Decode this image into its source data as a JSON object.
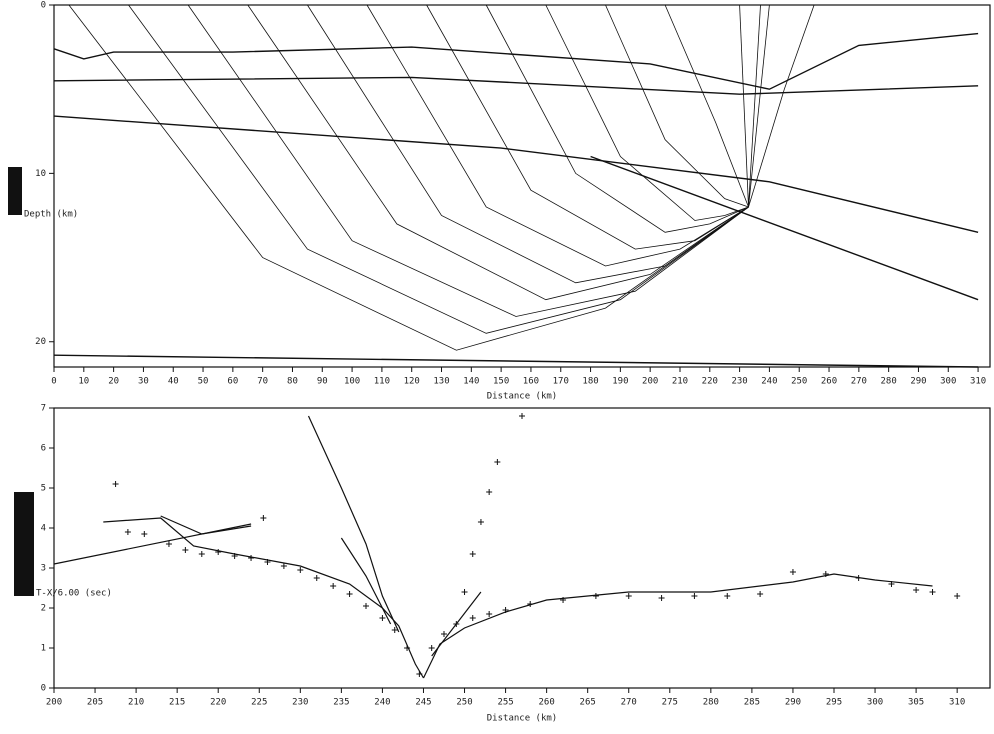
{
  "chart_data": [
    {
      "type": "ray-diagram",
      "x_label": "Distance (km)",
      "y_label": "Depth (km)",
      "xlim": [
        0,
        314
      ],
      "ylim": [
        0,
        21.5
      ],
      "xticks": [
        0,
        10,
        20,
        30,
        40,
        50,
        60,
        70,
        80,
        90,
        100,
        110,
        120,
        130,
        140,
        150,
        160,
        170,
        180,
        190,
        200,
        210,
        220,
        230,
        240,
        250,
        260,
        270,
        280,
        290,
        300,
        310
      ],
      "yticks": [
        0,
        10,
        20
      ],
      "color": "#111111",
      "boundaries": [
        {
          "x": [
            0,
            10,
            20,
            60,
            120,
            200,
            240,
            270,
            310
          ],
          "y": [
            2.6,
            3.2,
            2.8,
            2.8,
            2.5,
            3.5,
            5,
            2.4,
            1.7
          ]
        },
        {
          "x": [
            0,
            120,
            230,
            310
          ],
          "y": [
            4.5,
            4.3,
            5.3,
            4.8
          ]
        },
        {
          "x": [
            0,
            150,
            240,
            310
          ],
          "y": [
            6.6,
            8.5,
            10.5,
            13.5
          ]
        },
        {
          "x": [
            180,
            310
          ],
          "y": [
            9,
            17.5
          ]
        },
        {
          "x": [
            0,
            310
          ],
          "y": [
            20.8,
            21.5
          ]
        }
      ],
      "rays": [
        {
          "x": [
            233,
            185,
            135,
            70,
            5
          ],
          "y": [
            12,
            18,
            20.5,
            15,
            0
          ]
        },
        {
          "x": [
            233,
            190,
            145,
            85,
            25
          ],
          "y": [
            12,
            17.5,
            19.5,
            14.5,
            0
          ]
        },
        {
          "x": [
            233,
            195,
            155,
            100,
            45
          ],
          "y": [
            12,
            17,
            18.5,
            14,
            0
          ]
        },
        {
          "x": [
            233,
            200,
            165,
            115,
            65
          ],
          "y": [
            12,
            16,
            17.5,
            13,
            0
          ]
        },
        {
          "x": [
            233,
            205,
            175,
            130,
            85
          ],
          "y": [
            12,
            15.5,
            16.5,
            12.5,
            0
          ]
        },
        {
          "x": [
            233,
            210,
            185,
            145,
            105
          ],
          "y": [
            12,
            14.5,
            15.5,
            12,
            0
          ]
        },
        {
          "x": [
            233,
            215,
            195,
            160,
            125
          ],
          "y": [
            12,
            14,
            14.5,
            11,
            0
          ]
        },
        {
          "x": [
            233,
            220,
            205,
            175,
            145
          ],
          "y": [
            12,
            13,
            13.5,
            10,
            0
          ]
        },
        {
          "x": [
            233,
            225,
            215,
            190,
            165
          ],
          "y": [
            12,
            12.5,
            12.8,
            9,
            0
          ]
        },
        {
          "x": [
            233,
            225,
            205,
            185
          ],
          "y": [
            12,
            11.5,
            8,
            0
          ]
        },
        {
          "x": [
            233,
            222,
            205
          ],
          "y": [
            12,
            7,
            0
          ]
        },
        {
          "x": [
            233,
            230
          ],
          "y": [
            12,
            0
          ]
        },
        {
          "x": [
            233,
            237
          ],
          "y": [
            12,
            0
          ]
        },
        {
          "x": [
            233,
            240
          ],
          "y": [
            12,
            0
          ]
        },
        {
          "x": [
            233,
            245,
            255
          ],
          "y": [
            12,
            5,
            0
          ]
        }
      ]
    },
    {
      "type": "travel-time",
      "x_label": "Distance (km)",
      "y_label": "T-X/6.00 (sec)",
      "xlim": [
        200,
        314
      ],
      "ylim": [
        0,
        7
      ],
      "xticks": [
        200,
        205,
        210,
        215,
        220,
        225,
        230,
        235,
        240,
        245,
        250,
        255,
        260,
        265,
        270,
        275,
        280,
        285,
        290,
        295,
        300,
        305,
        310
      ],
      "yticks": [
        0,
        1,
        2,
        3,
        4,
        5,
        6,
        7
      ],
      "color": "#111111",
      "calculated": [
        {
          "x": [
            200,
            224
          ],
          "y": [
            3.1,
            4.1
          ]
        },
        {
          "x": [
            206,
            213,
            217,
            222,
            230,
            236,
            240,
            242,
            244,
            245
          ],
          "y": [
            4.15,
            4.25,
            3.55,
            3.35,
            3.05,
            2.6,
            2.0,
            1.55,
            0.6,
            0.25
          ]
        },
        {
          "x": [
            231,
            235,
            238,
            240,
            242
          ],
          "y": [
            6.8,
            5.0,
            3.6,
            2.3,
            1.4
          ]
        },
        {
          "x": [
            235,
            238,
            241
          ],
          "y": [
            3.75,
            2.8,
            1.6
          ]
        },
        {
          "x": [
            213,
            218,
            224
          ],
          "y": [
            4.3,
            3.85,
            4.05
          ]
        },
        {
          "x": [
            245,
            247,
            250,
            255,
            260,
            270,
            280,
            290,
            295,
            300,
            307
          ],
          "y": [
            0.25,
            1.1,
            1.5,
            1.9,
            2.2,
            2.4,
            2.4,
            2.65,
            2.85,
            2.7,
            2.55
          ]
        },
        {
          "x": [
            246,
            252
          ],
          "y": [
            0.8,
            2.4
          ]
        }
      ],
      "observed": {
        "x": [
          207.5,
          209,
          211,
          214,
          216,
          218,
          220,
          222,
          224,
          226,
          228,
          230,
          232,
          234,
          236,
          238,
          240,
          241.5,
          243,
          244.5,
          246,
          247.5,
          249,
          251,
          253,
          255,
          258,
          262,
          266,
          270,
          274,
          278,
          282,
          286,
          290,
          294,
          298,
          302,
          305,
          307,
          310,
          250,
          251,
          252,
          253,
          254,
          257,
          225.5
        ],
        "y": [
          5.1,
          3.9,
          3.85,
          3.6,
          3.45,
          3.35,
          3.4,
          3.3,
          3.25,
          3.15,
          3.05,
          2.95,
          2.75,
          2.55,
          2.35,
          2.05,
          1.75,
          1.45,
          1.0,
          0.35,
          1.0,
          1.35,
          1.6,
          1.75,
          1.85,
          1.95,
          2.1,
          2.2,
          2.3,
          2.3,
          2.25,
          2.3,
          2.3,
          2.35,
          2.9,
          2.85,
          2.75,
          2.6,
          2.45,
          2.4,
          2.3,
          2.4,
          3.35,
          4.15,
          4.9,
          5.65,
          6.8,
          4.25
        ]
      }
    }
  ]
}
